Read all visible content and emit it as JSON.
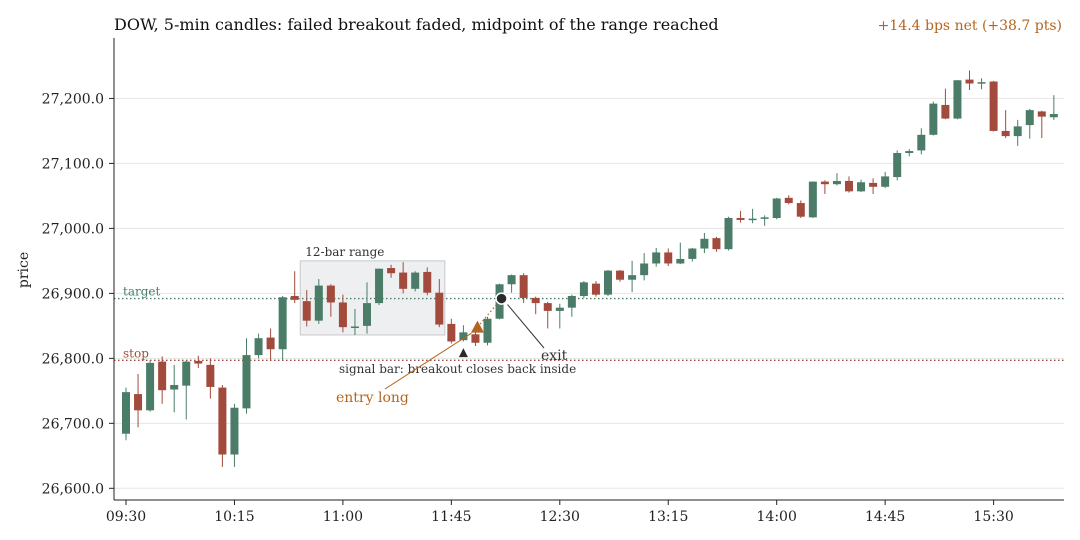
{
  "chart_data": {
    "type": "candlestick",
    "title": "DOW, 5-min candles: failed breakout faded, midpoint of the range reached",
    "net_label": "+14.4 bps net (+38.7 pts)",
    "ylabel": "price",
    "xlabel": "",
    "ylim": [
      26582,
      27293
    ],
    "y_ticks": [
      26600,
      26700,
      26800,
      26900,
      27000,
      27100,
      27200
    ],
    "y_tick_labels": [
      "26,600.0",
      "26,700.0",
      "26,800.0",
      "26,900.0",
      "27,000.0",
      "27,100.0",
      "27,200.0"
    ],
    "x_ticks": [
      "09:30",
      "10:15",
      "11:00",
      "11:45",
      "12:30",
      "13:15",
      "14:00",
      "14:45",
      "15:30"
    ],
    "x_tick_index": [
      0,
      9,
      18,
      27,
      36,
      45,
      54,
      63,
      72
    ],
    "grid": "horizontal",
    "colors": {
      "up": "#4a7c67",
      "down": "#a24a3b",
      "target": "#4a7c67",
      "stop": "#a24a3b",
      "accent": "#b5651d",
      "marker": "#2b2b2b",
      "range_fill": "#e8eaec"
    },
    "candles": [
      {
        "t": "09:30",
        "o": 26684,
        "h": 26755,
        "l": 26674,
        "c": 26748
      },
      {
        "t": "09:35",
        "o": 26745,
        "h": 26776,
        "l": 26694,
        "c": 26720
      },
      {
        "t": "09:40",
        "o": 26720,
        "h": 26797,
        "l": 26718,
        "c": 26793
      },
      {
        "t": "09:45",
        "o": 26795,
        "h": 26803,
        "l": 26730,
        "c": 26751
      },
      {
        "t": "09:50",
        "o": 26752,
        "h": 26790,
        "l": 26717,
        "c": 26759
      },
      {
        "t": "09:55",
        "o": 26758,
        "h": 26797,
        "l": 26706,
        "c": 26795
      },
      {
        "t": "10:00",
        "o": 26796,
        "h": 26804,
        "l": 26785,
        "c": 26792
      },
      {
        "t": "10:05",
        "o": 26790,
        "h": 26800,
        "l": 26738,
        "c": 26756
      },
      {
        "t": "10:10",
        "o": 26755,
        "h": 26759,
        "l": 26633,
        "c": 26652
      },
      {
        "t": "10:15",
        "o": 26652,
        "h": 26730,
        "l": 26633,
        "c": 26724
      },
      {
        "t": "10:20",
        "o": 26723,
        "h": 26831,
        "l": 26715,
        "c": 26805
      },
      {
        "t": "10:25",
        "o": 26805,
        "h": 26838,
        "l": 26800,
        "c": 26831
      },
      {
        "t": "10:30",
        "o": 26832,
        "h": 26846,
        "l": 26797,
        "c": 26814
      },
      {
        "t": "10:35",
        "o": 26814,
        "h": 26896,
        "l": 26797,
        "c": 26894
      },
      {
        "t": "10:40",
        "o": 26896,
        "h": 26934,
        "l": 26885,
        "c": 26890
      },
      {
        "t": "10:45",
        "o": 26888,
        "h": 26905,
        "l": 26849,
        "c": 26858
      },
      {
        "t": "10:50",
        "o": 26858,
        "h": 26922,
        "l": 26853,
        "c": 26912
      },
      {
        "t": "10:55",
        "o": 26912,
        "h": 26914,
        "l": 26864,
        "c": 26886
      },
      {
        "t": "11:00",
        "o": 26886,
        "h": 26898,
        "l": 26840,
        "c": 26848
      },
      {
        "t": "11:05",
        "o": 26848,
        "h": 26876,
        "l": 26836,
        "c": 26849
      },
      {
        "t": "11:10",
        "o": 26850,
        "h": 26917,
        "l": 26838,
        "c": 26885
      },
      {
        "t": "11:15",
        "o": 26885,
        "h": 26938,
        "l": 26882,
        "c": 26938
      },
      {
        "t": "11:20",
        "o": 26939,
        "h": 26944,
        "l": 26924,
        "c": 26931
      },
      {
        "t": "11:25",
        "o": 26932,
        "h": 26948,
        "l": 26900,
        "c": 26907
      },
      {
        "t": "11:30",
        "o": 26907,
        "h": 26934,
        "l": 26903,
        "c": 26932
      },
      {
        "t": "11:35",
        "o": 26933,
        "h": 26940,
        "l": 26897,
        "c": 26901
      },
      {
        "t": "11:40",
        "o": 26901,
        "h": 26922,
        "l": 26848,
        "c": 26852
      },
      {
        "t": "11:45",
        "o": 26853,
        "h": 26861,
        "l": 26823,
        "c": 26826
      },
      {
        "t": "11:50",
        "o": 26828,
        "h": 26851,
        "l": 26826,
        "c": 26840
      },
      {
        "t": "11:55",
        "o": 26837,
        "h": 26842,
        "l": 26819,
        "c": 26824
      },
      {
        "t": "12:00",
        "o": 26824,
        "h": 26864,
        "l": 26820,
        "c": 26861
      },
      {
        "t": "12:05",
        "o": 26861,
        "h": 26915,
        "l": 26860,
        "c": 26914
      },
      {
        "t": "12:10",
        "o": 26914,
        "h": 26929,
        "l": 26901,
        "c": 26928
      },
      {
        "t": "12:15",
        "o": 26928,
        "h": 26931,
        "l": 26885,
        "c": 26893
      },
      {
        "t": "12:20",
        "o": 26893,
        "h": 26895,
        "l": 26868,
        "c": 26885
      },
      {
        "t": "12:25",
        "o": 26885,
        "h": 26887,
        "l": 26846,
        "c": 26873
      },
      {
        "t": "12:30",
        "o": 26873,
        "h": 26884,
        "l": 26846,
        "c": 26878
      },
      {
        "t": "12:35",
        "o": 26878,
        "h": 26898,
        "l": 26864,
        "c": 26896
      },
      {
        "t": "12:40",
        "o": 26896,
        "h": 26919,
        "l": 26893,
        "c": 26917
      },
      {
        "t": "12:45",
        "o": 26915,
        "h": 26919,
        "l": 26895,
        "c": 26898
      },
      {
        "t": "12:50",
        "o": 26898,
        "h": 26936,
        "l": 26896,
        "c": 26935
      },
      {
        "t": "12:55",
        "o": 26935,
        "h": 26936,
        "l": 26918,
        "c": 26921
      },
      {
        "t": "13:00",
        "o": 26921,
        "h": 26950,
        "l": 26902,
        "c": 26928
      },
      {
        "t": "13:05",
        "o": 26928,
        "h": 26962,
        "l": 26920,
        "c": 26946
      },
      {
        "t": "13:10",
        "o": 26946,
        "h": 26970,
        "l": 26941,
        "c": 26963
      },
      {
        "t": "13:15",
        "o": 26963,
        "h": 26969,
        "l": 26942,
        "c": 26946
      },
      {
        "t": "13:20",
        "o": 26946,
        "h": 26978,
        "l": 26945,
        "c": 26953
      },
      {
        "t": "13:25",
        "o": 26953,
        "h": 26970,
        "l": 26949,
        "c": 26969
      },
      {
        "t": "13:30",
        "o": 26969,
        "h": 26993,
        "l": 26962,
        "c": 26984
      },
      {
        "t": "13:35",
        "o": 26985,
        "h": 26987,
        "l": 26964,
        "c": 26968
      },
      {
        "t": "13:40",
        "o": 26968,
        "h": 27018,
        "l": 26966,
        "c": 27016
      },
      {
        "t": "13:45",
        "o": 27016,
        "h": 27027,
        "l": 27009,
        "c": 27013
      },
      {
        "t": "13:50",
        "o": 27013,
        "h": 27030,
        "l": 27008,
        "c": 27015
      },
      {
        "t": "13:55",
        "o": 27015,
        "h": 27020,
        "l": 27004,
        "c": 27017
      },
      {
        "t": "14:00",
        "o": 27016,
        "h": 27047,
        "l": 27014,
        "c": 27046
      },
      {
        "t": "14:05",
        "o": 27047,
        "h": 27051,
        "l": 27037,
        "c": 27039
      },
      {
        "t": "14:10",
        "o": 27039,
        "h": 27043,
        "l": 27016,
        "c": 27018
      },
      {
        "t": "14:15",
        "o": 27017,
        "h": 27072,
        "l": 27016,
        "c": 27072
      },
      {
        "t": "14:20",
        "o": 27072,
        "h": 27074,
        "l": 27053,
        "c": 27068
      },
      {
        "t": "14:25",
        "o": 27068,
        "h": 27085,
        "l": 27066,
        "c": 27073
      },
      {
        "t": "14:30",
        "o": 27073,
        "h": 27080,
        "l": 27055,
        "c": 27057
      },
      {
        "t": "14:35",
        "o": 27057,
        "h": 27075,
        "l": 27056,
        "c": 27071
      },
      {
        "t": "14:40",
        "o": 27070,
        "h": 27077,
        "l": 27053,
        "c": 27064
      },
      {
        "t": "14:45",
        "o": 27064,
        "h": 27087,
        "l": 27062,
        "c": 27080
      },
      {
        "t": "14:50",
        "o": 27079,
        "h": 27120,
        "l": 27074,
        "c": 27116
      },
      {
        "t": "14:55",
        "o": 27116,
        "h": 27122,
        "l": 27111,
        "c": 27119
      },
      {
        "t": "15:00",
        "o": 27120,
        "h": 27154,
        "l": 27114,
        "c": 27144
      },
      {
        "t": "15:05",
        "o": 27144,
        "h": 27195,
        "l": 27143,
        "c": 27192
      },
      {
        "t": "15:10",
        "o": 27190,
        "h": 27215,
        "l": 27168,
        "c": 27169
      },
      {
        "t": "15:15",
        "o": 27169,
        "h": 27228,
        "l": 27168,
        "c": 27228
      },
      {
        "t": "15:20",
        "o": 27229,
        "h": 27243,
        "l": 27213,
        "c": 27223
      },
      {
        "t": "15:25",
        "o": 27224,
        "h": 27231,
        "l": 27214,
        "c": 27225
      },
      {
        "t": "15:30",
        "o": 27226,
        "h": 27227,
        "l": 27149,
        "c": 27150
      },
      {
        "t": "15:35",
        "o": 27150,
        "h": 27182,
        "l": 27139,
        "c": 27142
      },
      {
        "t": "15:40",
        "o": 27142,
        "h": 27167,
        "l": 27127,
        "c": 27157
      },
      {
        "t": "15:45",
        "o": 27159,
        "h": 27184,
        "l": 27138,
        "c": 27182
      },
      {
        "t": "15:50",
        "o": 27180,
        "h": 27181,
        "l": 27139,
        "c": 27172
      },
      {
        "t": "15:55",
        "o": 27171,
        "h": 27205,
        "l": 27167,
        "c": 27176
      }
    ],
    "levels": [
      {
        "name": "target",
        "label": "target",
        "value": 26892
      },
      {
        "name": "stop",
        "label": "stop",
        "value": 26797
      }
    ],
    "range_box": {
      "label": "12-bar range",
      "start_index": 15,
      "end_index": 27,
      "low": 26836,
      "high": 26950
    },
    "annotations": {
      "signal_bar": {
        "label": "signal bar: breakout closes back inside",
        "index": 28,
        "value": 26808
      },
      "entry": {
        "label": "entry long",
        "index": 29,
        "value": 26848
      },
      "exit": {
        "label": "exit",
        "index": 31,
        "value": 26892
      }
    }
  }
}
